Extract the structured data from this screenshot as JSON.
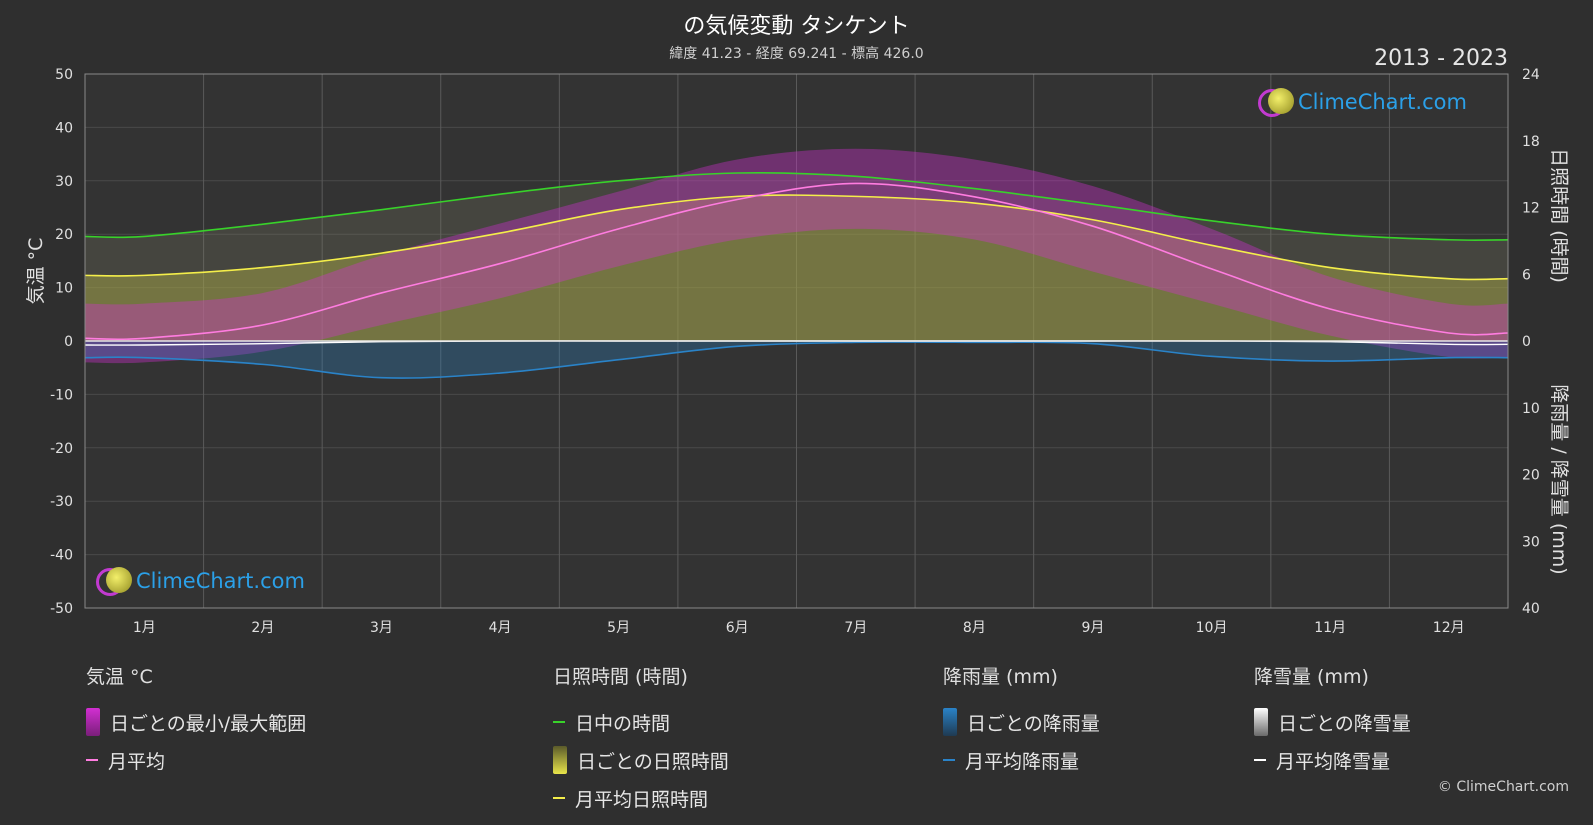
{
  "header": {
    "title": "の気候変動 タシケント",
    "subtitle": "緯度 41.23 - 経度 69.241 - 標高 426.0",
    "years": "2013 - 2023"
  },
  "logo": {
    "text": "ClimeChart.com"
  },
  "copyright": "© ClimeChart.com",
  "colors": {
    "temp_range": "#d22fd2",
    "temp_avg": "#ff7ce0",
    "daylight": "#38d22a",
    "sunshine": "#c4c43a",
    "sunshine_avg": "#f4ee4a",
    "rain": "#2a83c8",
    "rain_avg": "#2a83c8",
    "snow": "#bdbdbd",
    "snow_avg": "#ffffff"
  },
  "legend": {
    "temperature": {
      "head": "気温 °C",
      "items": [
        "日ごとの最小/最大範囲",
        "月平均"
      ]
    },
    "sunshine": {
      "head": "日照時間 (時間)",
      "items": [
        "日中の時間",
        "日ごとの日照時間",
        "月平均日照時間"
      ]
    },
    "rain": {
      "head": "降雨量 (mm)",
      "items": [
        "日ごとの降雨量",
        "月平均降雨量"
      ]
    },
    "snow": {
      "head": "降雪量 (mm)",
      "items": [
        "日ごとの降雪量",
        "月平均降雪量"
      ]
    }
  },
  "chart_data": {
    "type": "area",
    "categories": [
      "1月",
      "2月",
      "3月",
      "4月",
      "5月",
      "6月",
      "7月",
      "8月",
      "9月",
      "10月",
      "11月",
      "12月"
    ],
    "axes": {
      "y_left": {
        "label": "気温 °C",
        "min": -50,
        "max": 50,
        "ticks": [
          50,
          40,
          30,
          20,
          10,
          0,
          -10,
          -20,
          -30,
          -40,
          -50
        ]
      },
      "y_right_top": {
        "label": "日照時間 (時間)",
        "min": 0,
        "max": 24,
        "ticks": [
          24,
          18,
          12,
          6,
          0
        ]
      },
      "y_right_bottom": {
        "label": "降雨量 / 降雪量 (mm)",
        "min": 0,
        "max": 40,
        "ticks": [
          10,
          20,
          30,
          40
        ]
      }
    },
    "grid": true,
    "series": [
      {
        "name": "日中の時間",
        "unit": "hours",
        "values": [
          9.4,
          10.5,
          11.8,
          13.2,
          14.4,
          15.1,
          14.8,
          13.7,
          12.3,
          10.8,
          9.6,
          9.1
        ]
      },
      {
        "name": "月平均日照時間",
        "unit": "hours",
        "values": [
          5.9,
          6.6,
          7.9,
          9.7,
          11.8,
          13.0,
          13.0,
          12.4,
          10.9,
          8.6,
          6.6,
          5.6
        ]
      },
      {
        "name": "月平均",
        "unit": "°C",
        "values": [
          0.5,
          3.0,
          9.0,
          14.5,
          21.0,
          26.5,
          29.5,
          27.0,
          21.5,
          13.5,
          6.0,
          1.5
        ]
      },
      {
        "name": "日ごとの最小/最大範囲",
        "unit": "°C",
        "min": [
          -4,
          -2,
          3,
          8,
          14,
          19,
          21,
          19,
          13,
          7,
          1,
          -3
        ],
        "max": [
          7,
          9,
          16,
          22,
          28,
          34,
          36,
          34,
          29,
          21,
          12,
          7
        ]
      },
      {
        "name": "月平均降雨量",
        "unit": "mm",
        "values": [
          2.5,
          3.5,
          5.5,
          4.8,
          2.8,
          0.8,
          0.2,
          0.2,
          0.4,
          2.3,
          3.0,
          2.5
        ]
      },
      {
        "name": "月平均降雪量",
        "unit": "mm",
        "values": [
          0.6,
          0.4,
          0.1,
          0.0,
          0.0,
          0.0,
          0.0,
          0.0,
          0.0,
          0.0,
          0.1,
          0.5
        ]
      }
    ]
  }
}
